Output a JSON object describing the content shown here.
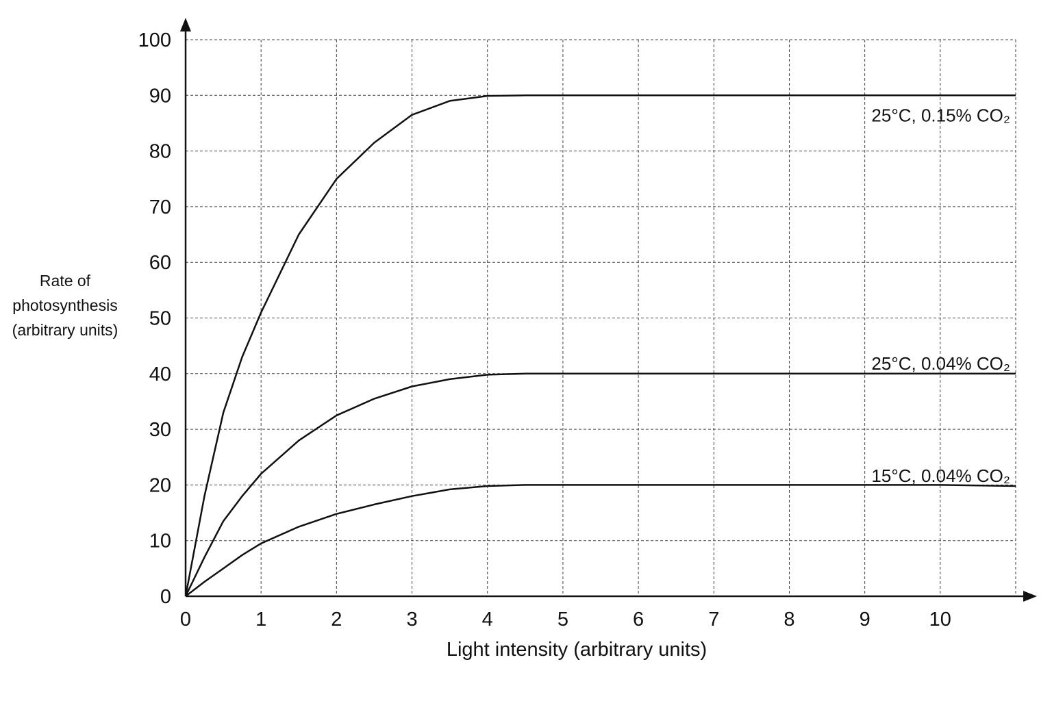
{
  "chart_data": {
    "type": "line",
    "xlabel": "Light intensity (arbitrary units)",
    "ylabel": [
      "Rate of",
      "photosynthesis",
      "(arbitrary units)"
    ],
    "xlim": [
      0,
      11
    ],
    "ylim": [
      0,
      100
    ],
    "xticks": [
      0,
      1,
      2,
      3,
      4,
      5,
      6,
      7,
      8,
      9,
      10
    ],
    "yticks": [
      0,
      10,
      20,
      30,
      40,
      50,
      60,
      70,
      80,
      90,
      100
    ],
    "grid": true,
    "x": [
      0,
      0.25,
      0.5,
      0.75,
      1,
      1.5,
      2,
      2.5,
      3,
      3.5,
      4,
      4.5,
      5,
      6,
      7,
      8,
      9,
      10,
      11
    ],
    "series": [
      {
        "name": "25°C, 0.15% CO₂",
        "color": "#111111",
        "values": [
          0,
          18,
          33,
          43,
          51,
          65,
          75,
          81.5,
          86.5,
          89,
          89.9,
          90,
          90,
          90,
          90,
          90,
          90,
          90,
          90
        ]
      },
      {
        "name": "25°C, 0.04% CO₂",
        "color": "#111111",
        "values": [
          0,
          7,
          13.5,
          18,
          22,
          28,
          32.5,
          35.5,
          37.7,
          39,
          39.8,
          40,
          40,
          40,
          40,
          40,
          40,
          40,
          40
        ]
      },
      {
        "name": "15°C, 0.04% CO₂",
        "color": "#111111",
        "values": [
          0,
          2.6,
          5,
          7.4,
          9.5,
          12.5,
          14.8,
          16.5,
          18,
          19.2,
          19.8,
          20,
          20,
          20,
          20,
          20,
          20,
          20,
          19.8
        ]
      }
    ]
  }
}
